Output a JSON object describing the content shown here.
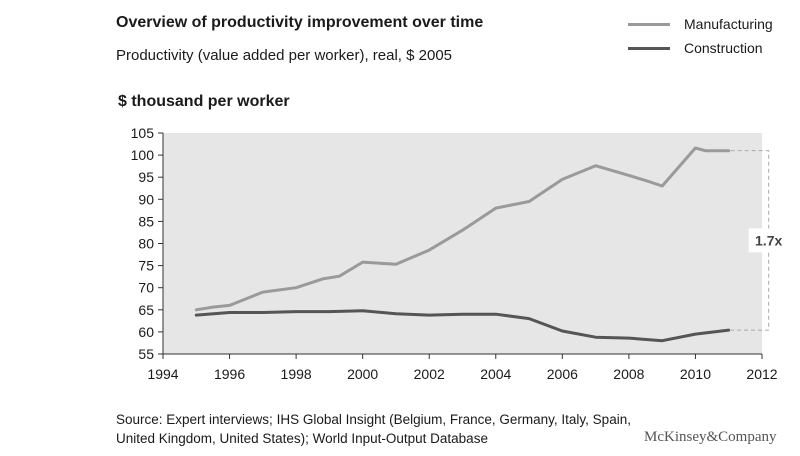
{
  "header": {
    "title": "Overview of productivity improvement over time",
    "subtitle": "Productivity (value added per worker), real, $ 2005"
  },
  "legend": [
    {
      "label": "Manufacturing",
      "color": "#9a9a9a"
    },
    {
      "label": "Construction",
      "color": "#555555"
    }
  ],
  "footer": {
    "source_line1": "Source: Expert interviews; IHS Global Insight (Belgium, France, Germany, Italy, Spain,",
    "source_line2": "United Kingdom, United States); World Input-Output Database",
    "brand": "McKinsey&Company"
  },
  "chart_data": {
    "type": "line",
    "ylabel": "$ thousand per worker",
    "xlabel": "",
    "xlim": [
      1994,
      2012
    ],
    "ylim": [
      55,
      105
    ],
    "x_ticks": [
      1994,
      1996,
      1998,
      2000,
      2002,
      2004,
      2006,
      2008,
      2010,
      2012
    ],
    "y_ticks": [
      55,
      60,
      65,
      70,
      75,
      80,
      85,
      90,
      95,
      100,
      105
    ],
    "background": "#e6e6e6",
    "grid": false,
    "annotation": "1.7x",
    "series": [
      {
        "name": "Manufacturing",
        "color": "#9a9a9a",
        "x": [
          1995,
          1995.5,
          1996,
          1997,
          1998,
          1998.8,
          1999.3,
          2000,
          2001,
          2002,
          2003,
          2004,
          2005,
          2006,
          2007,
          2008,
          2008.6,
          2009,
          2010,
          2010.3,
          2011
        ],
        "y": [
          65.0,
          65.6,
          66.0,
          69.0,
          70.0,
          72.0,
          72.6,
          75.8,
          75.3,
          78.5,
          83.0,
          88.0,
          89.5,
          94.5,
          97.6,
          95.4,
          94.0,
          93.0,
          101.6,
          101.0,
          101.0
        ]
      },
      {
        "name": "Construction",
        "color": "#555555",
        "x": [
          1995,
          1996,
          1997,
          1998,
          1999,
          2000,
          2001,
          2002,
          2003,
          2004,
          2005,
          2006,
          2007,
          2008,
          2009,
          2010,
          2011
        ],
        "y": [
          63.8,
          64.4,
          64.4,
          64.6,
          64.6,
          64.8,
          64.1,
          63.8,
          64.0,
          64.0,
          63.0,
          60.2,
          58.8,
          58.6,
          58.0,
          59.5,
          60.4
        ]
      }
    ]
  }
}
